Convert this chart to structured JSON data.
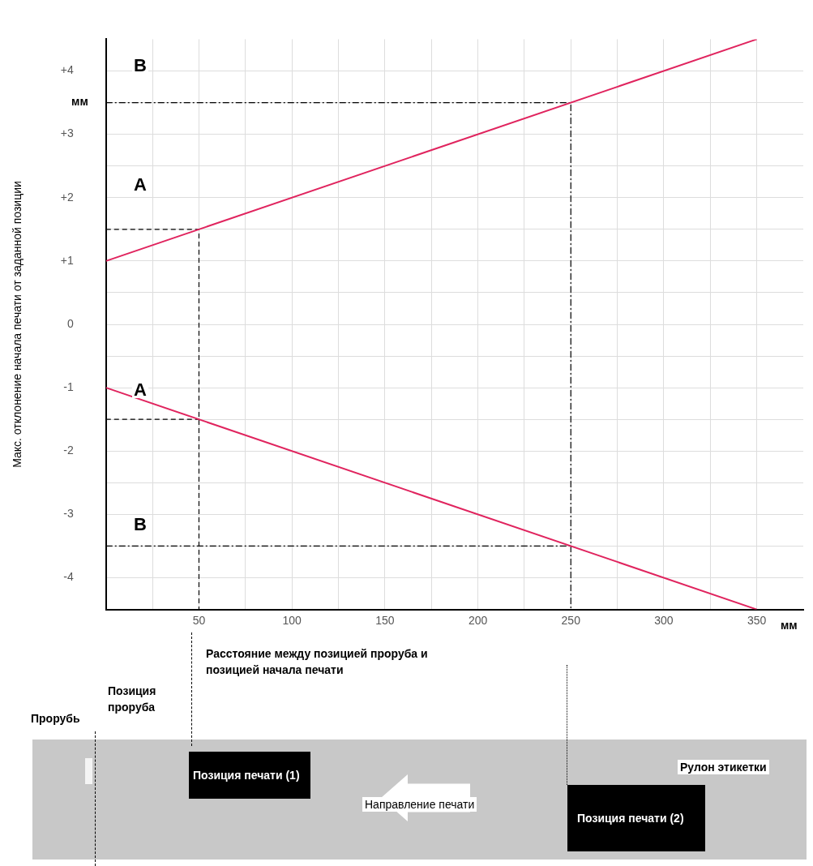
{
  "chart_data": {
    "type": "line",
    "xlabel": "Расстояние между позицией проруба и позицией начала печати",
    "ylabel": "Макс. отклонение начала печати от заданной позиции",
    "xlim": [
      0,
      375
    ],
    "ylim": [
      -4.5,
      4.5
    ],
    "xticks": [
      {
        "value": 25,
        "label": null
      },
      {
        "value": 50,
        "label": "50"
      },
      {
        "value": 75,
        "label": null
      },
      {
        "value": 100,
        "label": "100"
      },
      {
        "value": 125,
        "label": null
      },
      {
        "value": 150,
        "label": "150"
      },
      {
        "value": 175,
        "label": null
      },
      {
        "value": 200,
        "label": "200"
      },
      {
        "value": 225,
        "label": null
      },
      {
        "value": 250,
        "label": "250"
      },
      {
        "value": 275,
        "label": null
      },
      {
        "value": 300,
        "label": "300"
      },
      {
        "value": 325,
        "label": null
      },
      {
        "value": 350,
        "label": "350"
      }
    ],
    "yticks": [
      {
        "value": -4,
        "label": "-4"
      },
      {
        "value": -3.5,
        "label": null
      },
      {
        "value": -3,
        "label": "-3"
      },
      {
        "value": -2.5,
        "label": null
      },
      {
        "value": -2,
        "label": "-2"
      },
      {
        "value": -1.5,
        "label": null
      },
      {
        "value": -1,
        "label": "-1"
      },
      {
        "value": -0.5,
        "label": null
      },
      {
        "value": 0,
        "label": "0"
      },
      {
        "value": 0.5,
        "label": null
      },
      {
        "value": 1,
        "label": "+1"
      },
      {
        "value": 1.5,
        "label": null
      },
      {
        "value": 2,
        "label": "+2"
      },
      {
        "value": 2.5,
        "label": null
      },
      {
        "value": 3,
        "label": "+3"
      },
      {
        "value": 3.5,
        "label": null
      },
      {
        "value": 4,
        "label": "+4"
      }
    ],
    "grid": true,
    "legend": false,
    "marker": "none",
    "series": [
      {
        "x": [
          0,
          350
        ],
        "values": [
          1,
          4.5
        ],
        "color": "#e0245e",
        "line_style": "solid"
      },
      {
        "x": [
          0,
          350
        ],
        "values": [
          -1,
          -4.5
        ],
        "color": "#e0245e",
        "line_style": "solid"
      },
      {
        "x": [
          0,
          50,
          50
        ],
        "values": [
          1.5,
          1.5,
          -4.5
        ],
        "color": "#000000",
        "line_style": "dashed"
      },
      {
        "x": [
          0,
          50
        ],
        "values": [
          -1.5,
          -1.5
        ],
        "color": "#000000",
        "line_style": "dashed"
      },
      {
        "x": [
          0,
          250,
          250
        ],
        "values": [
          3.5,
          3.5,
          -4.5
        ],
        "color": "#000000",
        "line_style": "dotted"
      },
      {
        "x": [
          0,
          250
        ],
        "values": [
          -3.5,
          -3.5
        ],
        "color": "#000000",
        "line_style": "dotted"
      }
    ],
    "annotations": [
      "мм",
      "мм",
      "Прорубь",
      "Позиция проруба",
      "Позиция печати (1)",
      "Направление печати",
      "Рулон этикетки",
      "Позиция печати (2)",
      "A",
      "B",
      "A",
      "B"
    ]
  }
}
